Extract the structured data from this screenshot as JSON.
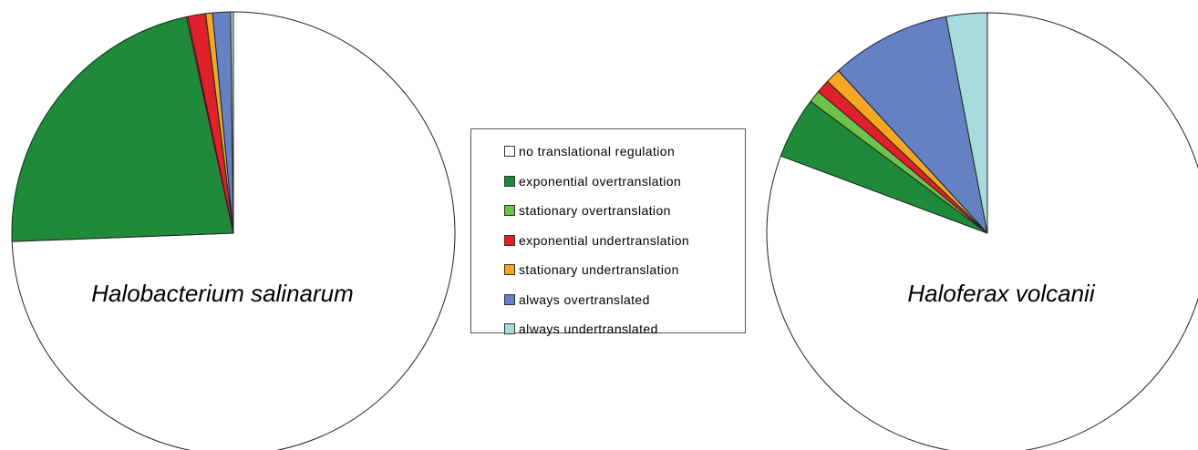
{
  "chart_data": [
    {
      "type": "pie",
      "title": "Halobacterium salinarum",
      "slices": [
        {
          "category": "no translational regulation",
          "value": 74.4
        },
        {
          "category": "exponential overtranslation",
          "value": 22.2
        },
        {
          "category": "stationary overtranslation",
          "value": 0.1
        },
        {
          "category": "exponential undertranslation",
          "value": 1.3
        },
        {
          "category": "stationary undertranslation",
          "value": 0.5
        },
        {
          "category": "always overtranslated",
          "value": 1.3
        },
        {
          "category": "always undertranslated",
          "value": 0.2
        }
      ]
    },
    {
      "type": "pie",
      "title": "Haloferax volcanii",
      "slices": [
        {
          "category": "no translational regulation",
          "value": 80.7
        },
        {
          "category": "exponential overtranslation",
          "value": 4.5
        },
        {
          "category": "stationary overtranslation",
          "value": 0.9
        },
        {
          "category": "exponential undertranslation",
          "value": 1.0
        },
        {
          "category": "stationary undertranslation",
          "value": 1.1
        },
        {
          "category": "always overtranslated",
          "value": 8.8
        },
        {
          "category": "always undertranslated",
          "value": 3.0
        }
      ]
    }
  ],
  "legend": {
    "items": [
      {
        "label": "no translational regulation",
        "color": "#ffffff"
      },
      {
        "label": "exponential overtranslation",
        "color": "#1f8a3a"
      },
      {
        "label": "stationary overtranslation",
        "color": "#6cc24a"
      },
      {
        "label": "exponential undertranslation",
        "color": "#e0202a"
      },
      {
        "label": "stationary undertranslation",
        "color": "#f5a623"
      },
      {
        "label": "always overtranslated",
        "color": "#6680c4"
      },
      {
        "label": "always undertranslated",
        "color": "#a8dcdc"
      }
    ]
  }
}
